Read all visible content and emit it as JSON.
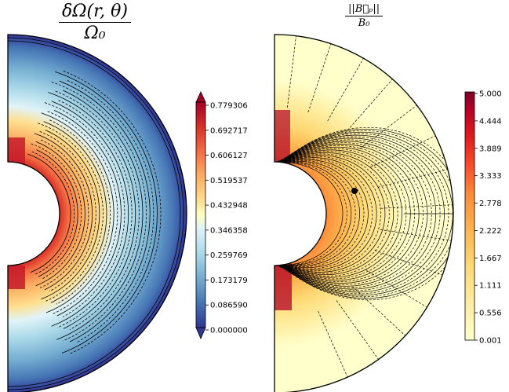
{
  "chart_data": [
    {
      "type": "heatmap",
      "title_numerator": "δΩ(r, θ)",
      "title_denominator": "Ω₀",
      "colormap": "RdYlBu_r",
      "colorbar_ticks": [
        "0.779306",
        "0.692717",
        "0.606127",
        "0.519537",
        "0.432948",
        "0.346358",
        "0.259769",
        "0.173179",
        "0.086590",
        "0.000000"
      ],
      "colorbar_range": [
        0.0,
        0.779306
      ],
      "colorbar_extend": "both",
      "geometry": "meridional half-annulus"
    },
    {
      "type": "heatmap",
      "title_numerator": "||B⃗ₚ||",
      "title_denominator": "B₀",
      "colormap": "YlOrRd",
      "colorbar_ticks": [
        "5.000",
        "4.444",
        "3.889",
        "3.333",
        "2.778",
        "2.222",
        "1.667",
        "1.111",
        "0.556",
        "0.001"
      ],
      "colorbar_range": [
        0.001,
        5.0
      ],
      "colorbar_extend": "none",
      "geometry": "meridional half-annulus"
    }
  ],
  "colors": {
    "low_blue": "#313695",
    "high_red": "#a50026",
    "cream": "#ffffcc",
    "dark_red": "#800026"
  }
}
